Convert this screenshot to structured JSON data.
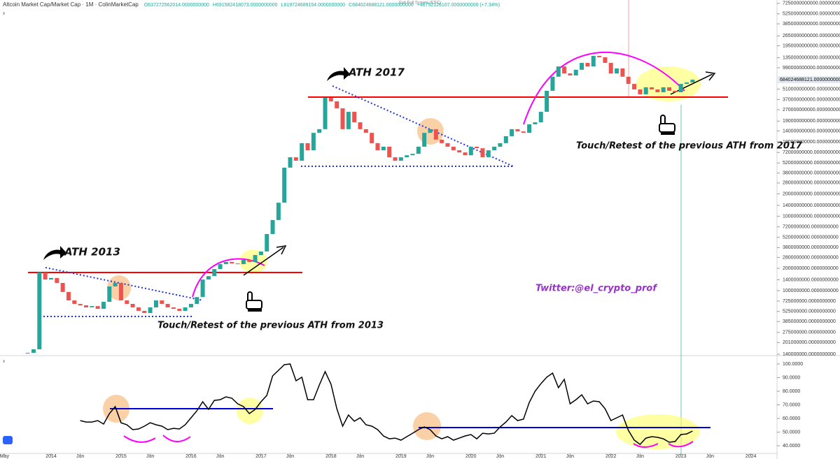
{
  "chart_data": {
    "type": "candlestick",
    "title": "Altcoin Market Cap/Market Cap · 1M · ColinMarketCap",
    "ohlc": [
      "O637272562014.0000000000",
      "H691582418073.0000000000",
      "L619724689154.0000000000",
      "C684024688121.0000000000",
      "+46752126107.0000000000 (+7.34%)"
    ],
    "exit_hint": "Exit Full Screen (ESC)",
    "annotations": [
      "ATH 2013",
      "ATH 2017",
      "Touch/Retest of the previous ATH from 2013",
      "Touch/Retest of the previous ATH from 2017",
      "Twitter:@el_crypto_prof"
    ],
    "up_color": "#26a69a",
    "down_color": "#ef5350",
    "log_scale": true,
    "xlim": [
      "2013-04",
      "2024-05"
    ],
    "xticks": [
      {
        "value": "2013-05",
        "label": "May"
      },
      {
        "value": "2014-01",
        "label": "2014"
      },
      {
        "value": "2014-06",
        "label": "Jun"
      },
      {
        "value": "2015-01",
        "label": "2015"
      },
      {
        "value": "2015-06",
        "label": "Jun"
      },
      {
        "value": "2016-01",
        "label": "2016"
      },
      {
        "value": "2016-06",
        "label": "Jun"
      },
      {
        "value": "2017-01",
        "label": "2017"
      },
      {
        "value": "2017-06",
        "label": "Jun"
      },
      {
        "value": "2018-01",
        "label": "2018"
      },
      {
        "value": "2018-06",
        "label": "Jun"
      },
      {
        "value": "2019-01",
        "label": "2019"
      },
      {
        "value": "2019-06",
        "label": "Jun"
      },
      {
        "value": "2020-01",
        "label": "2020"
      },
      {
        "value": "2020-06",
        "label": "Jun"
      },
      {
        "value": "2021-01",
        "label": "2021"
      },
      {
        "value": "2021-06",
        "label": "Jun"
      },
      {
        "value": "2022-01",
        "label": "2022"
      },
      {
        "value": "2022-06",
        "label": "Jun"
      },
      {
        "value": "2023-01",
        "label": "2023"
      },
      {
        "value": "2023-06",
        "label": "Jun"
      },
      {
        "value": "2024-01",
        "label": "2024"
      }
    ],
    "x": [
      "2013-09",
      "2013-10",
      "2013-11",
      "2013-12",
      "2014-01",
      "2014-02",
      "2014-03",
      "2014-04",
      "2014-05",
      "2014-06",
      "2014-07",
      "2014-08",
      "2014-09",
      "2014-10",
      "2014-11",
      "2014-12",
      "2015-01",
      "2015-02",
      "2015-03",
      "2015-04",
      "2015-05",
      "2015-06",
      "2015-07",
      "2015-08",
      "2015-09",
      "2015-10",
      "2015-11",
      "2015-12",
      "2016-01",
      "2016-02",
      "2016-03",
      "2016-04",
      "2016-05",
      "2016-06",
      "2016-07",
      "2016-08",
      "2016-09",
      "2016-10",
      "2016-11",
      "2016-12",
      "2017-01",
      "2017-02",
      "2017-03",
      "2017-04",
      "2017-05",
      "2017-06",
      "2017-07",
      "2017-08",
      "2017-09",
      "2017-10",
      "2017-11",
      "2017-12",
      "2018-01",
      "2018-02",
      "2018-03",
      "2018-04",
      "2018-05",
      "2018-06",
      "2018-07",
      "2018-08",
      "2018-09",
      "2018-10",
      "2018-11",
      "2018-12",
      "2019-01",
      "2019-02",
      "2019-03",
      "2019-04",
      "2019-05",
      "2019-06",
      "2019-07",
      "2019-08",
      "2019-09",
      "2019-10",
      "2019-11",
      "2019-12",
      "2020-01",
      "2020-02",
      "2020-03",
      "2020-04",
      "2020-05",
      "2020-06",
      "2020-07",
      "2020-08",
      "2020-09",
      "2020-10",
      "2020-11",
      "2020-12",
      "2021-01",
      "2021-02",
      "2021-03",
      "2021-04",
      "2021-05",
      "2021-06",
      "2021-07",
      "2021-08",
      "2021-09",
      "2021-10",
      "2021-11",
      "2021-12",
      "2022-01",
      "2022-02",
      "2022-03",
      "2022-04",
      "2022-05",
      "2022-06",
      "2022-07",
      "2022-08",
      "2022-09",
      "2022-10",
      "2022-11",
      "2022-12",
      "2023-01",
      "2023-02",
      "2023-03"
    ],
    "values": [
      146000000.0,
      163000000.0,
      1750000000.0,
      1410000000.0,
      1480000000.0,
      1270000000.0,
      960000000.0,
      740000000.0,
      664000000.0,
      635000000.0,
      596000000.0,
      620000000.0,
      570000000.0,
      708000000.0,
      1140000000.0,
      1270000000.0,
      740000000.0,
      664000000.0,
      596000000.0,
      535000000.0,
      500000000.0,
      596000000.0,
      740000000.0,
      664000000.0,
      596000000.0,
      570000000.0,
      535000000.0,
      596000000.0,
      664000000.0,
      820000000.0,
      1410000000.0,
      1570000000.0,
      1950000000.0,
      2270000000.0,
      2430000000.0,
      2320000000.0,
      2270000000.0,
      2590000000.0,
      2430000000.0,
      3010000000.0,
      3360000000.0,
      5770000000.0,
      8900000000.0,
      15200000000.0,
      45000000000.0,
      62000000000.0,
      55700000000.0,
      96000000000.0,
      77000000000.0,
      132000000000.0,
      148000000000.0,
      390000000000.0,
      350000000000.0,
      282000000000.0,
      148000000000.0,
      253000000000.0,
      183000000000.0,
      148000000000.0,
      132000000000.0,
      96000000000.0,
      77000000000.0,
      86000000000.0,
      62000000000.0,
      55700000000.0,
      62000000000.0,
      66000000000.0,
      69000000000.0,
      86000000000.0,
      132000000000.0,
      148000000000.0,
      107000000000.0,
      96000000000.0,
      86000000000.0,
      77000000000.0,
      72000000000.0,
      66000000000.0,
      86000000000.0,
      82000000000.0,
      62000000000.0,
      77000000000.0,
      86000000000.0,
      96000000000.0,
      119000000000.0,
      148000000000.0,
      138000000000.0,
      132000000000.0,
      172000000000.0,
      183000000000.0,
      253000000000.0,
      485000000000.0,
      750000000000.0,
      1030000000000.0,
      830000000000.0,
      780000000000.0,
      930000000000.0,
      1150000000000.0,
      1030000000000.0,
      1430000000000.0,
      1370000000000.0,
      1150000000000.0,
      830000000000.0,
      970000000000.0,
      750000000000.0,
      600000000000.0,
      506000000000.0,
      435000000000.0,
      540000000000.0,
      506000000000.0,
      464000000000.0,
      540000000000.0,
      485000000000.0,
      464000000000.0,
      600000000000.0,
      628000000000.0,
      684024688121
    ],
    "last_label": "684024688121.0000000000",
    "ylim": [
      137000000.0,
      8050000000000.0
    ],
    "yticks": [
      {
        "value": 7250000000000,
        "label": "7250000000000.0000000000"
      },
      {
        "value": 5250000000000,
        "label": "5250000000000.0000000000"
      },
      {
        "value": 3850000000000,
        "label": "3850000000000.0000000000"
      },
      {
        "value": 2650000000000,
        "label": "2650000000000.0000000000"
      },
      {
        "value": 1950000000000,
        "label": "1950000000000.0000000000"
      },
      {
        "value": 1350000000000,
        "label": "1350000000000.0000000000"
      },
      {
        "value": 990000000000,
        "label": "990000000000.0000000000"
      },
      {
        "value": 510000000000,
        "label": "510000000000.0000000000"
      },
      {
        "value": 370000000000,
        "label": "370000000000.0000000000"
      },
      {
        "value": 270000000000,
        "label": "270000000000.0000000000"
      },
      {
        "value": 190000000000,
        "label": "190000000000.0000000000"
      },
      {
        "value": 140000000000,
        "label": "140000000000.0000000000"
      },
      {
        "value": 100000000000,
        "label": "100000000000.0000000000"
      },
      {
        "value": 72000000000,
        "label": "72000000000.0000000000"
      },
      {
        "value": 52000000000,
        "label": "52000000000.0000000000"
      },
      {
        "value": 38000000000,
        "label": "38000000000.0000000000"
      },
      {
        "value": 28000000000,
        "label": "28000000000.0000000000"
      },
      {
        "value": 20000000000,
        "label": "20000000000.0000000000"
      },
      {
        "value": 14000000000,
        "label": "14000000000.0000000000"
      },
      {
        "value": 10000000000,
        "label": "10000000000.0000000000"
      },
      {
        "value": 7200000000,
        "label": "7200000000.0000000000"
      },
      {
        "value": 5200000000,
        "label": "5200000000.0000000000"
      },
      {
        "value": 3800000000,
        "label": "3800000000.0000000000"
      },
      {
        "value": 2800000000,
        "label": "2800000000.0000000000"
      },
      {
        "value": 2000000000,
        "label": "2000000000.0000000000"
      },
      {
        "value": 1400000000,
        "label": "1400000000.0000000000"
      },
      {
        "value": 1000000000,
        "label": "1000000000.0000000000"
      },
      {
        "value": 725000000,
        "label": "725000000.0000000000"
      },
      {
        "value": 525000000,
        "label": "525000000.0000000000"
      },
      {
        "value": 385000000,
        "label": "385000000.0000000000"
      },
      {
        "value": 275000000,
        "label": "275000000.0000000000"
      },
      {
        "value": 201000000,
        "label": "201000000.0000000000"
      },
      {
        "value": 140000000,
        "label": "140000000.0000000000"
      }
    ],
    "rsi": {
      "color": "#000000",
      "values": [
        null,
        null,
        null,
        null,
        null,
        null,
        null,
        null,
        null,
        58.5,
        57.4,
        57.4,
        58.5,
        55.9,
        63.6,
        68.7,
        56.9,
        55.4,
        51.8,
        52.3,
        54.4,
        56.9,
        55.4,
        54.4,
        51.8,
        52.8,
        52.3,
        55.4,
        60.5,
        65.6,
        72.3,
        66.7,
        73.3,
        73.8,
        75.9,
        74.9,
        70.8,
        68.7,
        63.6,
        66.7,
        72.3,
        76.9,
        91.3,
        95.4,
        99.5,
        100,
        87.7,
        90.3,
        73.8,
        73.8,
        84.6,
        94.4,
        85.1,
        67.2,
        54.4,
        62.6,
        58,
        60.5,
        55.4,
        54.4,
        51.8,
        47.2,
        45.1,
        45.6,
        44.1,
        46.7,
        49.2,
        51.8,
        53.8,
        51.8,
        47.2,
        45.1,
        46.7,
        44.1,
        45.6,
        47.2,
        48.2,
        45.1,
        49.2,
        48.7,
        49.2,
        53.8,
        57.4,
        62.1,
        58.5,
        59.5,
        71.8,
        80,
        85.6,
        90.3,
        93.3,
        82.6,
        88.7,
        70.8,
        73.8,
        77.4,
        70.8,
        72.8,
        72.3,
        67.2,
        58.5,
        60.5,
        62.6,
        51.3,
        44.1,
        41,
        45.6,
        46.7,
        46.2,
        45.1,
        42.6,
        43.1,
        48.2,
        48.7,
        50.8
      ],
      "ylim": [
        34.9,
        104.6
      ],
      "yticks": [
        {
          "value": 100,
          "label": "100.0000"
        },
        {
          "value": 90,
          "label": "90.0000"
        },
        {
          "value": 80,
          "label": "80.0000"
        },
        {
          "value": 70,
          "label": "70.0000"
        },
        {
          "value": 60,
          "label": "60.0000"
        },
        {
          "value": 50,
          "label": "50.0000"
        },
        {
          "value": 40,
          "label": "40.0000"
        }
      ]
    }
  }
}
